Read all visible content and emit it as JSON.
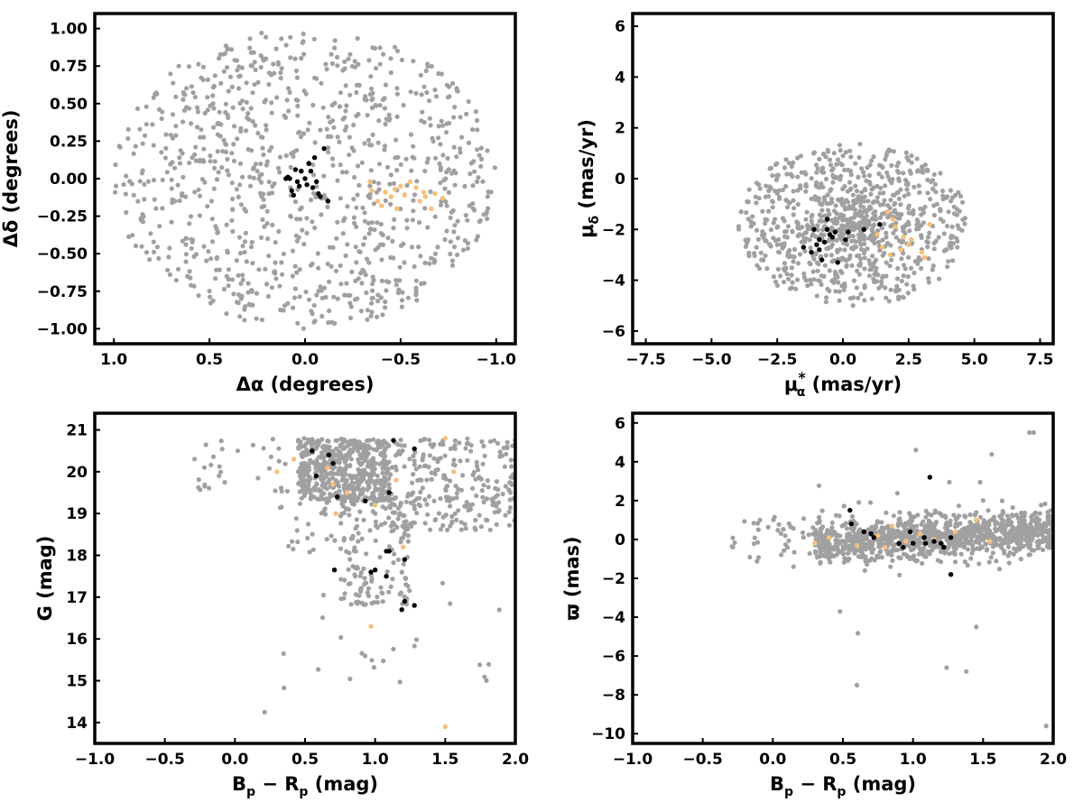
{
  "colors": {
    "field": "#a0a0a0",
    "cluster_a": "#000000",
    "cluster_b": "#f5c07a"
  },
  "chart_data": [
    {
      "id": "sky",
      "type": "scatter",
      "xlabel": "Δα (degrees)",
      "ylabel": "Δδ (degrees)",
      "xlim": [
        1.1,
        -1.1
      ],
      "ylim": [
        -1.1,
        1.1
      ],
      "x_reversed": true,
      "xticks": [
        1.0,
        0.5,
        0.0,
        -0.5,
        -1.0
      ],
      "xtick_labels": [
        "1.0",
        "0.5",
        "0.0",
        "−0.5",
        "−1.0"
      ],
      "yticks": [
        1.0,
        0.75,
        0.5,
        0.25,
        0.0,
        -0.25,
        -0.5,
        -0.75,
        -1.0
      ],
      "ytick_labels": [
        "1.00",
        "0.75",
        "0.50",
        "0.25",
        "0.00",
        "−0.25",
        "−0.50",
        "−0.75",
        "−1.00"
      ],
      "field_region": {
        "shape": "disc",
        "center": [
          0,
          0
        ],
        "radius_x": 1.0,
        "radius_y": 1.0,
        "count": 950
      },
      "series": [
        {
          "color": "black",
          "points": [
            [
              0.08,
              0.0
            ],
            [
              0.1,
              0.0
            ],
            [
              0.05,
              0.06
            ],
            [
              0.02,
              0.05
            ],
            [
              0.03,
              -0.05
            ],
            [
              0.07,
              -0.08
            ],
            [
              0.06,
              -0.11
            ],
            [
              0.0,
              0.0
            ],
            [
              -0.03,
              0.05
            ],
            [
              -0.02,
              0.1
            ],
            [
              -0.05,
              0.14
            ],
            [
              -0.1,
              0.2
            ],
            [
              -0.06,
              -0.02
            ],
            [
              -0.04,
              -0.06
            ],
            [
              -0.08,
              -0.12
            ],
            [
              -0.12,
              -0.15
            ],
            [
              0.04,
              -0.02
            ],
            [
              -0.01,
              -0.04
            ],
            [
              0.09,
              0.01
            ],
            [
              -0.07,
              -0.1
            ]
          ]
        },
        {
          "color": "orange",
          "points": [
            [
              -0.34,
              -0.02
            ],
            [
              -0.35,
              -0.08
            ],
            [
              -0.38,
              -0.15
            ],
            [
              -0.42,
              -0.09
            ],
            [
              -0.47,
              -0.07
            ],
            [
              -0.5,
              -0.05
            ],
            [
              -0.52,
              -0.11
            ],
            [
              -0.55,
              -0.02
            ],
            [
              -0.58,
              -0.06
            ],
            [
              -0.6,
              -0.15
            ],
            [
              -0.63,
              -0.12
            ],
            [
              -0.66,
              -0.2
            ],
            [
              -0.68,
              -0.1
            ],
            [
              -0.72,
              -0.13
            ],
            [
              -0.48,
              -0.2
            ],
            [
              -0.45,
              -0.12
            ],
            [
              -0.4,
              -0.18
            ],
            [
              -0.62,
              -0.09
            ]
          ]
        }
      ]
    },
    {
      "id": "pm",
      "type": "scatter",
      "xlabel_main": "μ",
      "xlabel_sup": "*",
      "xlabel_sub": "α",
      "xlabel_unit": " (mas/yr)",
      "ylabel_main": "μ",
      "ylabel_sub": "δ",
      "ylabel_unit": " (mas/yr)",
      "xlim": [
        -8,
        8
      ],
      "ylim": [
        -6.5,
        6.5
      ],
      "xticks": [
        -7.5,
        -5.0,
        -2.5,
        0.0,
        2.5,
        5.0,
        7.5
      ],
      "xtick_labels": [
        "−7.5",
        "−5.0",
        "−2.5",
        "0.0",
        "2.5",
        "5.0",
        "7.5"
      ],
      "yticks": [
        6,
        4,
        2,
        0,
        -2,
        -4,
        -6
      ],
      "ytick_labels": [
        "6",
        "4",
        "2",
        "0",
        "−2",
        "−4",
        "−6"
      ],
      "field_region": {
        "shape": "blob",
        "center": [
          0.4,
          -1.8
        ],
        "radius_x": 4.4,
        "radius_y": 3.2,
        "count": 900
      },
      "series": [
        {
          "color": "black",
          "points": [
            [
              -1.5,
              -2.7
            ],
            [
              -1.0,
              -2.6
            ],
            [
              -0.9,
              -2.8
            ],
            [
              -0.7,
              -2.5
            ],
            [
              -0.5,
              -2.2
            ],
            [
              -0.4,
              -2.3
            ],
            [
              -0.2,
              -3.3
            ],
            [
              0.1,
              -2.4
            ],
            [
              0.2,
              -2.1
            ],
            [
              -0.6,
              -1.6
            ],
            [
              -1.1,
              -2.0
            ],
            [
              0.8,
              -2.0
            ],
            [
              1.4,
              -1.8
            ],
            [
              -0.8,
              -3.2
            ],
            [
              -0.3,
              -2.1
            ],
            [
              -1.2,
              -2.9
            ],
            [
              -0.6,
              -2.0
            ],
            [
              -0.9,
              -2.4
            ]
          ]
        },
        {
          "color": "orange",
          "points": [
            [
              1.7,
              -1.3
            ],
            [
              2.0,
              -1.9
            ],
            [
              2.3,
              -2.3
            ],
            [
              2.6,
              -2.4
            ],
            [
              1.5,
              -2.7
            ],
            [
              1.8,
              -3.0
            ],
            [
              3.1,
              -3.1
            ],
            [
              3.3,
              -1.8
            ],
            [
              2.2,
              -2.8
            ],
            [
              1.3,
              -2.2
            ],
            [
              3.0,
              -2.9
            ],
            [
              1.9,
              -1.6
            ],
            [
              2.5,
              -2.6
            ]
          ]
        }
      ]
    },
    {
      "id": "cmd",
      "type": "scatter",
      "xlabel_main": "B",
      "xlabel_sub": "p",
      "xlabel_mid": " − R",
      "xlabel_sub2": "p",
      "xlabel_unit": " (mag)",
      "ylabel": "G (mag)",
      "xlim": [
        -1.0,
        2.0
      ],
      "ylim": [
        13.5,
        21.4
      ],
      "xticks": [
        -1.0,
        -0.5,
        0.0,
        0.5,
        1.0,
        1.5,
        2.0
      ],
      "xtick_labels": [
        "−1.0",
        "−0.5",
        "0.0",
        "0.5",
        "1.0",
        "1.5",
        "2.0"
      ],
      "yticks": [
        21,
        20,
        19,
        18,
        17,
        16,
        15,
        14
      ],
      "ytick_labels": [
        "21",
        "20",
        "19",
        "18",
        "17",
        "16",
        "15",
        "14"
      ],
      "series": [
        {
          "color": "black",
          "points": [
            [
              0.55,
              20.5
            ],
            [
              0.67,
              20.4
            ],
            [
              0.7,
              20.2
            ],
            [
              0.58,
              19.9
            ],
            [
              0.73,
              19.4
            ],
            [
              0.93,
              19.3
            ],
            [
              1.1,
              19.5
            ],
            [
              1.13,
              20.75
            ],
            [
              1.28,
              20.55
            ],
            [
              1.08,
              18.1
            ],
            [
              1.1,
              18.1
            ],
            [
              1.0,
              17.65
            ],
            [
              0.97,
              17.6
            ],
            [
              1.08,
              17.5
            ],
            [
              1.21,
              17.9
            ],
            [
              1.21,
              16.9
            ],
            [
              1.28,
              16.8
            ],
            [
              1.19,
              16.7
            ],
            [
              0.71,
              17.65
            ]
          ]
        },
        {
          "color": "orange",
          "points": [
            [
              0.42,
              20.3
            ],
            [
              0.66,
              20.1
            ],
            [
              0.7,
              19.7
            ],
            [
              0.8,
              19.5
            ],
            [
              0.72,
              19.0
            ],
            [
              1.0,
              19.2
            ],
            [
              1.15,
              19.8
            ],
            [
              1.5,
              20.8
            ],
            [
              1.56,
              20.0
            ],
            [
              0.97,
              16.3
            ],
            [
              1.5,
              13.9
            ],
            [
              0.3,
              20.0
            ],
            [
              1.2,
              18.2
            ]
          ]
        }
      ]
    },
    {
      "id": "parallax",
      "type": "scatter",
      "xlabel_main": "B",
      "xlabel_sub": "p",
      "xlabel_mid": " − R",
      "xlabel_sub2": "p",
      "xlabel_unit": " (mag)",
      "ylabel": "ϖ (mas)",
      "xlim": [
        -1.0,
        2.0
      ],
      "ylim": [
        -10.5,
        6.5
      ],
      "xticks": [
        -1.0,
        -0.5,
        0.0,
        0.5,
        1.0,
        1.5,
        2.0
      ],
      "xtick_labels": [
        "−1.0",
        "−0.5",
        "0.0",
        "0.5",
        "1.0",
        "1.5",
        "2.0"
      ],
      "yticks": [
        6,
        4,
        2,
        0,
        -2,
        -4,
        -6,
        -8,
        -10
      ],
      "ytick_labels": [
        "6",
        "4",
        "2",
        "0",
        "−2",
        "−4",
        "−6",
        "−8",
        "−10"
      ],
      "series": [
        {
          "color": "black",
          "points": [
            [
              0.55,
              1.5
            ],
            [
              0.56,
              0.8
            ],
            [
              0.7,
              0.3
            ],
            [
              0.72,
              0.1
            ],
            [
              0.9,
              -0.2
            ],
            [
              0.98,
              0.4
            ],
            [
              1.0,
              -0.2
            ],
            [
              1.08,
              0.1
            ],
            [
              1.09,
              -0.2
            ],
            [
              1.12,
              3.2
            ],
            [
              1.15,
              -0.1
            ],
            [
              1.2,
              -0.2
            ],
            [
              1.22,
              -0.4
            ],
            [
              1.27,
              0.1
            ],
            [
              1.27,
              -1.8
            ],
            [
              0.93,
              -0.4
            ],
            [
              0.65,
              0.4
            ]
          ]
        },
        {
          "color": "orange",
          "points": [
            [
              0.3,
              -0.2
            ],
            [
              0.4,
              0.1
            ],
            [
              0.6,
              -0.3
            ],
            [
              0.75,
              0.2
            ],
            [
              0.85,
              0.7
            ],
            [
              0.95,
              -0.1
            ],
            [
              1.05,
              0.3
            ],
            [
              1.15,
              0.0
            ],
            [
              1.45,
              1.0
            ],
            [
              1.55,
              -0.1
            ],
            [
              0.8,
              -0.4
            ],
            [
              1.3,
              0.4
            ]
          ]
        }
      ]
    }
  ]
}
